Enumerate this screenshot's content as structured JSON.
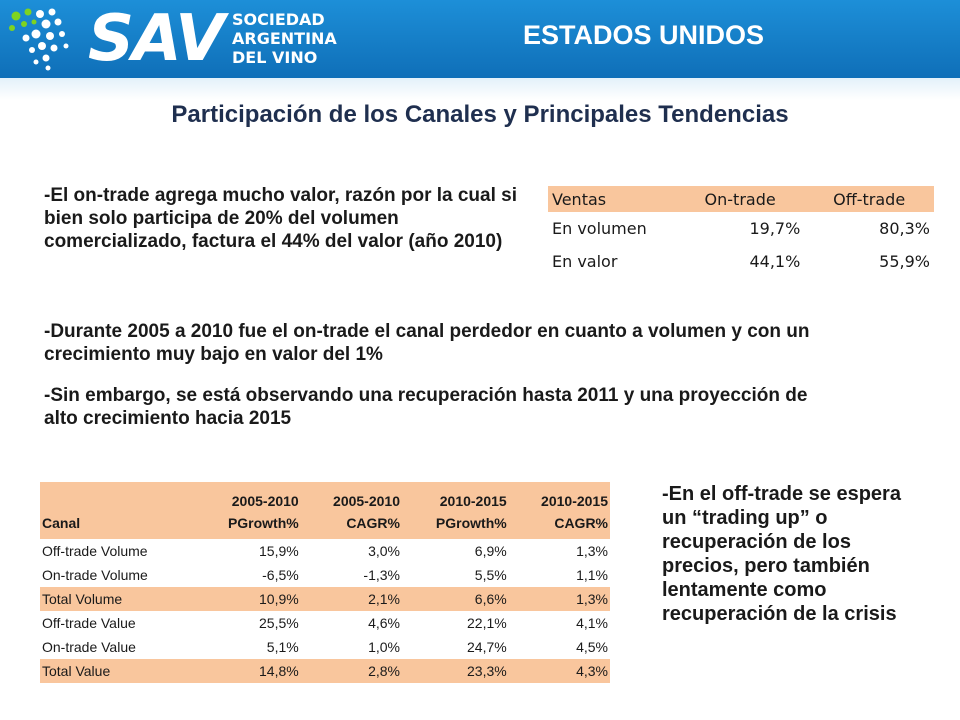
{
  "header": {
    "logo_text": "SAV",
    "logo_sub": [
      "SOCIEDAD",
      "ARGENTINA",
      "DEL VINO"
    ],
    "country": "ESTADOS UNIDOS",
    "band_color": "#1d8fd8"
  },
  "title": "Participación de los Canales y Principales Tendencias",
  "paragraphs": {
    "p1": "-El on-trade agrega mucho valor, razón por la cual si bien solo participa de 20% del volumen comercializado, factura el 44% del valor (año 2010)",
    "p2": "-Durante 2005 a 2010 fue el on-trade el canal perdedor en cuanto a volumen y con un crecimiento muy bajo en valor del 1%",
    "p3": "-Sin embargo, se está observando una recuperación hasta 2011 y una proyección de alto crecimiento hacia 2015",
    "p4": "-En el off-trade se espera un “trading up” o recuperación de los precios, pero también lentamente como recuperación de la crisis"
  },
  "ventas_table": {
    "headers": [
      "Ventas",
      "On-trade",
      "Off-trade"
    ],
    "rows": [
      [
        "En volumen",
        "19,7%",
        "80,3%"
      ],
      [
        "En valor",
        "44,1%",
        "55,9%"
      ]
    ],
    "header_color": "#f9c69d"
  },
  "canal_table": {
    "headers": [
      [
        "",
        "Canal"
      ],
      [
        "2005-2010",
        "PGrowth%"
      ],
      [
        "2005-2010",
        "CAGR%"
      ],
      [
        "2010-2015",
        "PGrowth%"
      ],
      [
        "2010-2015",
        "CAGR%"
      ]
    ],
    "rows": [
      [
        "Off-trade  Volume",
        "15,9%",
        "3,0%",
        "6,9%",
        "1,3%"
      ],
      [
        "On-trade  Volume",
        "-6,5%",
        "-1,3%",
        "5,5%",
        "1,1%"
      ],
      [
        "Total Volume",
        "10,9%",
        "2,1%",
        "6,6%",
        "1,3%"
      ],
      [
        "Off-trade  Value",
        "25,5%",
        "4,6%",
        "22,1%",
        "4,1%"
      ],
      [
        "On-trade  Value",
        "5,1%",
        "1,0%",
        "24,7%",
        "4,5%"
      ],
      [
        "Total Value",
        "14,8%",
        "2,8%",
        "23,3%",
        "4,3%"
      ]
    ],
    "highlight_color": "#f9c69d"
  }
}
